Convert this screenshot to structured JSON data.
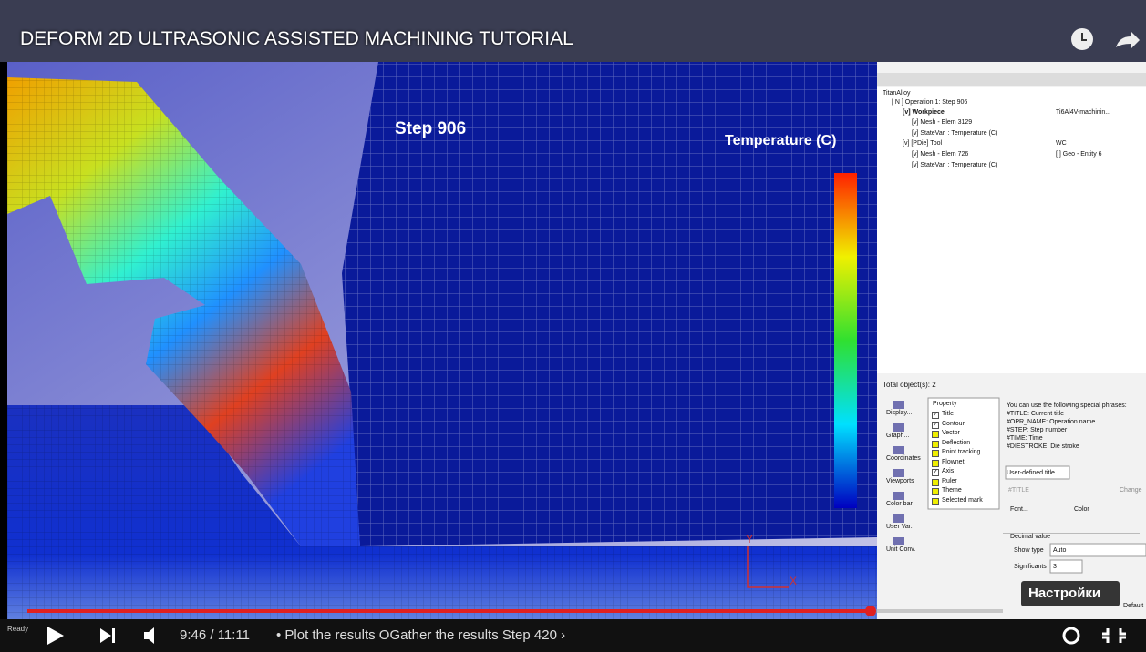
{
  "video": {
    "title": "DEFORM 2D ULTRASONIC ASSISTED MACHINING TUTORIAL",
    "time": "9:46 / 11:11",
    "chapter": "• Plot the results OGather the results Step 420 ›",
    "tooltip": "Настройки"
  },
  "viewport": {
    "step": "Step 906",
    "legend_title": "Temperature (C)",
    "axis_y": "Y",
    "axis_x": "X"
  },
  "tree": [
    "TitanAlloy",
    "[ N ] Operation 1: Step 906",
    "[v] Workpiece",
    "Ti6Al4V-machinin...",
    "[v] Mesh - Elem 3129",
    "[v] StateVar. : Temperature (C)",
    "[v] [PDie] Tool",
    "WC",
    "[v] Mesh - Elem 726",
    "[ ] Geo - Entity 6",
    "[v] StateVar. : Temperature (C)"
  ],
  "panel": {
    "total": "Total object(s): 2",
    "tools": [
      "Display...",
      "Graph...",
      "Coordinates",
      "Viewports",
      "Color bar",
      "User Var.",
      "Unit Conv."
    ],
    "property_header": "Property",
    "properties": [
      {
        "label": "Title",
        "checked": true
      },
      {
        "label": "Contour",
        "checked": true
      },
      {
        "label": "Vector",
        "checked": false
      },
      {
        "label": "Deflection",
        "checked": false
      },
      {
        "label": "Point tracking",
        "checked": false
      },
      {
        "label": "Flownet",
        "checked": false
      },
      {
        "label": "Axis",
        "checked": true
      },
      {
        "label": "Ruler",
        "checked": false
      },
      {
        "label": "Theme",
        "checked": false
      },
      {
        "label": "Selected mark",
        "checked": false
      }
    ],
    "help": [
      "You can use the following special phrases:",
      "#TITLE: Current title",
      "#OPR_NAME: Operation name",
      "#STEP: Step number",
      "#TIME: Time",
      "#DIESTROKE: Die stroke"
    ],
    "user_defined": "User-defined title",
    "title_field": "#TITLE",
    "change": "Change",
    "font": "Font...",
    "color": "Color",
    "decimal": "Decimal value",
    "show_type": "Show type",
    "show_value": "Auto",
    "significants": "Significants",
    "significants_value": "3",
    "default": "Default"
  },
  "status": "Ready"
}
